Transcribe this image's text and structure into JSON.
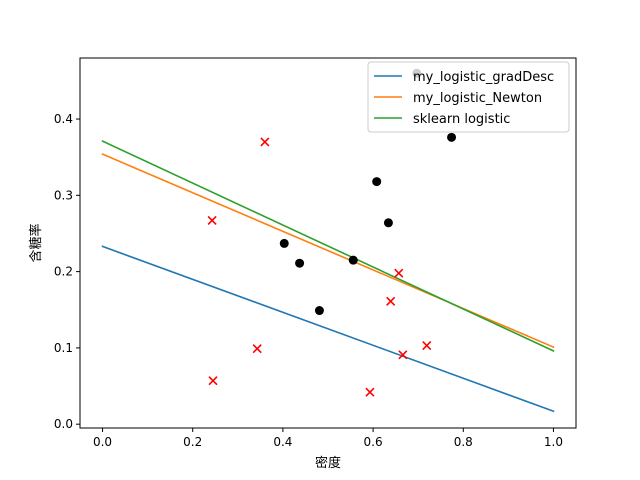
{
  "chart_data": {
    "type": "scatter",
    "title": "",
    "xlabel": "密度",
    "ylabel": "含糖率",
    "xlim": [
      -0.05,
      1.05
    ],
    "ylim": [
      -0.005,
      0.48
    ],
    "xticks": [
      0.0,
      0.2,
      0.4,
      0.6,
      0.8,
      1.0
    ],
    "xtick_labels": [
      "0.0",
      "0.2",
      "0.4",
      "0.6",
      "0.8",
      "1.0"
    ],
    "yticks": [
      0.0,
      0.1,
      0.2,
      0.3,
      0.4
    ],
    "ytick_labels": [
      "0.0",
      "0.1",
      "0.2",
      "0.3",
      "0.4"
    ],
    "grid": false,
    "legend_position": "top-right",
    "positive_points": {
      "marker": "circle",
      "color": "#000000",
      "x": [
        0.697,
        0.774,
        0.634,
        0.608,
        0.556,
        0.403,
        0.481,
        0.437
      ],
      "y": [
        0.46,
        0.376,
        0.264,
        0.318,
        0.215,
        0.237,
        0.149,
        0.211
      ]
    },
    "negative_points": {
      "marker": "x",
      "color": "#ff0000",
      "x": [
        0.666,
        0.243,
        0.245,
        0.343,
        0.639,
        0.657,
        0.36,
        0.593,
        0.719
      ],
      "y": [
        0.091,
        0.267,
        0.057,
        0.099,
        0.161,
        0.198,
        0.37,
        0.042,
        0.103
      ]
    },
    "series": [
      {
        "name": "my_logistic_gradDesc",
        "color": "#1f77b4",
        "x": [
          0.0,
          1.0
        ],
        "y": [
          0.233,
          0.017
        ]
      },
      {
        "name": "my_logistic_Newton",
        "color": "#ff7f0e",
        "x": [
          0.0,
          1.0
        ],
        "y": [
          0.354,
          0.101
        ]
      },
      {
        "name": "sklearn logistic",
        "color": "#2ca02c",
        "x": [
          0.0,
          1.0
        ],
        "y": [
          0.371,
          0.096
        ]
      }
    ]
  }
}
